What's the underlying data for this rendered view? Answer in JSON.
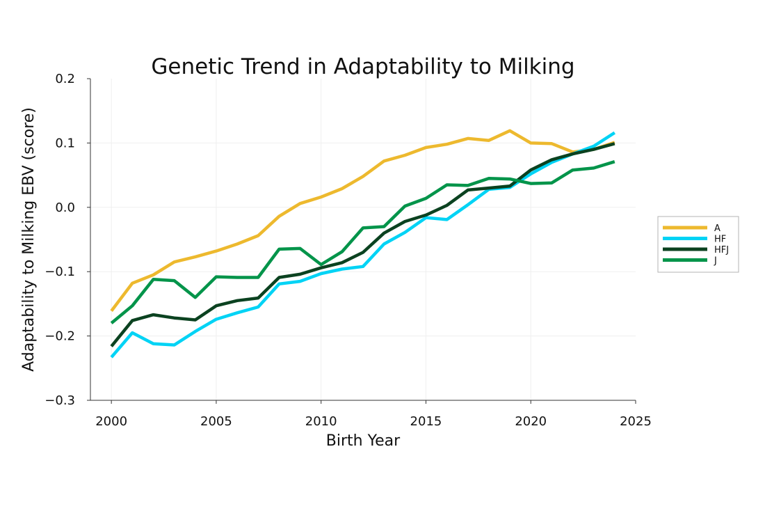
{
  "chart_data": {
    "type": "line",
    "title": "Genetic Trend in Adaptability to Milking",
    "xlabel": "Birth Year",
    "ylabel": "Adaptability to Milking EBV (score)",
    "xlim": [
      1999,
      2025
    ],
    "ylim": [
      -0.3,
      0.2
    ],
    "xticks": [
      2000,
      2005,
      2010,
      2015,
      2020,
      2025
    ],
    "xtick_labels": [
      "2000",
      "2005",
      "2010",
      "2015",
      "2020",
      "2025"
    ],
    "yticks": [
      0.2,
      0.1,
      0.0,
      -0.1,
      -0.2,
      -0.3
    ],
    "ytick_labels": [
      "0.2",
      "0.1",
      "0.0",
      "−0.1",
      "−0.2",
      "−0.3"
    ],
    "grid": true,
    "legend_position": "right",
    "x": [
      2000,
      2001,
      2002,
      2003,
      2004,
      2005,
      2006,
      2007,
      2008,
      2009,
      2010,
      2011,
      2012,
      2013,
      2014,
      2015,
      2016,
      2017,
      2018,
      2019,
      2020,
      2021,
      2022,
      2023,
      2024
    ],
    "series": [
      {
        "name": "A",
        "color": "#EDB92E",
        "values": [
          -0.161,
          -0.118,
          -0.105,
          -0.085,
          -0.077,
          -0.068,
          -0.057,
          -0.044,
          -0.014,
          0.006,
          0.016,
          0.029,
          0.048,
          0.072,
          0.081,
          0.093,
          0.098,
          0.107,
          0.104,
          0.119,
          0.1,
          0.099,
          0.086,
          0.09,
          0.101
        ]
      },
      {
        "name": "HF",
        "color": "#00D3F5",
        "values": [
          -0.233,
          -0.195,
          -0.212,
          -0.214,
          -0.193,
          -0.174,
          -0.164,
          -0.155,
          -0.119,
          -0.115,
          -0.103,
          -0.096,
          -0.092,
          -0.057,
          -0.039,
          -0.016,
          -0.019,
          0.004,
          0.028,
          0.031,
          0.052,
          0.07,
          0.083,
          0.095,
          0.116
        ]
      },
      {
        "name": "HFJ",
        "color": "#0B4220",
        "values": [
          -0.216,
          -0.176,
          -0.167,
          -0.172,
          -0.175,
          -0.153,
          -0.145,
          -0.141,
          -0.109,
          -0.104,
          -0.094,
          -0.086,
          -0.07,
          -0.04,
          -0.022,
          -0.012,
          0.003,
          0.027,
          0.03,
          0.033,
          0.058,
          0.074,
          0.083,
          0.09,
          0.099
        ]
      },
      {
        "name": "J",
        "color": "#03944A",
        "values": [
          -0.18,
          -0.153,
          -0.112,
          -0.114,
          -0.14,
          -0.108,
          -0.109,
          -0.109,
          -0.065,
          -0.064,
          -0.089,
          -0.069,
          -0.032,
          -0.03,
          0.002,
          0.014,
          0.035,
          0.034,
          0.045,
          0.044,
          0.037,
          0.038,
          0.058,
          0.061,
          0.071
        ]
      }
    ]
  }
}
